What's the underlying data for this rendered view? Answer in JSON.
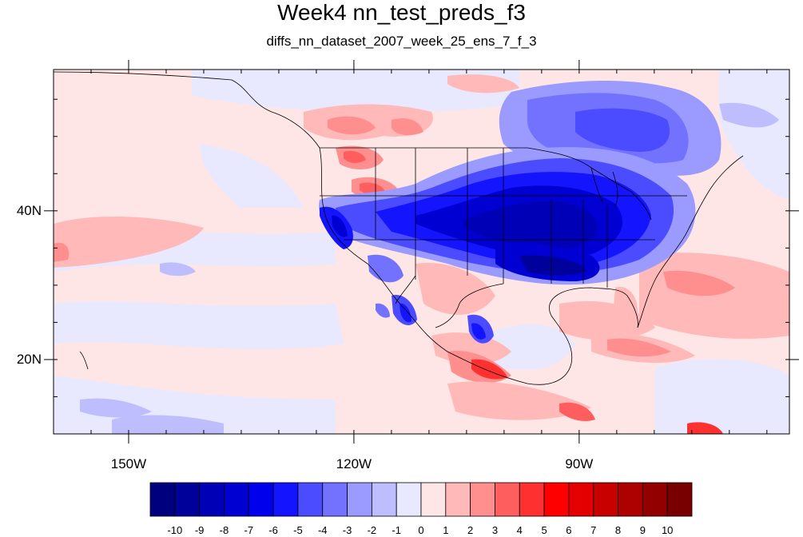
{
  "title": "Week4 nn_test_preds_f3",
  "subtitle": "diffs_nn_dataset_2007_week_25_ens_7_f_3",
  "map": {
    "lon_range": [
      -160,
      -62
    ],
    "lat_range": [
      10,
      59
    ],
    "lon_ticks": [
      {
        "lon": -150,
        "label": "150W"
      },
      {
        "lon": -120,
        "label": "120W"
      },
      {
        "lon": -90,
        "label": "90W"
      }
    ],
    "lat_ticks": [
      {
        "lat": 40,
        "label": "40N"
      },
      {
        "lat": 20,
        "label": "20N"
      }
    ]
  },
  "colorbar": {
    "labels": [
      "-10",
      "-9",
      "-8",
      "-7",
      "-6",
      "-5",
      "-4",
      "-3",
      "-2",
      "-1",
      "0",
      "1",
      "2",
      "3",
      "4",
      "5",
      "6",
      "7",
      "8",
      "9",
      "10"
    ],
    "colors": [
      "#00007f",
      "#00009b",
      "#0000b6",
      "#0000d2",
      "#0000ed",
      "#1414ff",
      "#4b4bff",
      "#7272ff",
      "#9a9aff",
      "#bebeff",
      "#e8e8ff",
      "#ffe6e6",
      "#ffb9b9",
      "#ff8e8e",
      "#ff5e5e",
      "#ff3030",
      "#ff0000",
      "#e40000",
      "#c80000",
      "#ad0000",
      "#930000",
      "#790000"
    ]
  }
}
